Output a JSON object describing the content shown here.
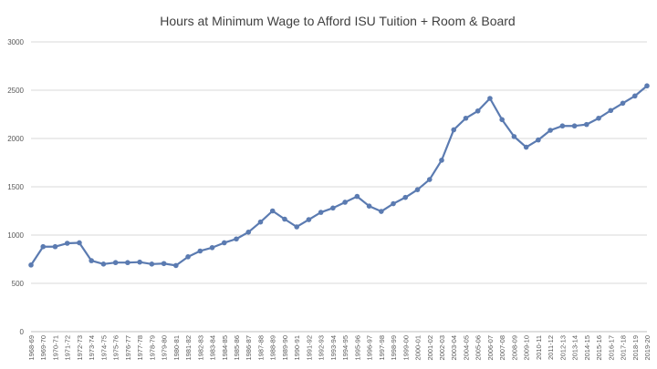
{
  "chart_data": {
    "type": "line",
    "title": "Hours at Minimum Wage to Afford ISU Tuition + Room & Board",
    "xlabel": "",
    "ylabel": "",
    "ylim": [
      0,
      3000
    ],
    "yticks": [
      0,
      500,
      1000,
      1500,
      2000,
      2500,
      3000
    ],
    "grid": true,
    "legend": "none",
    "line_color": "#5b7bb1",
    "categories": [
      "1968-69",
      "1969-70",
      "1970-71",
      "1971-72",
      "1972-73",
      "1973-74",
      "1974-75",
      "1975-76",
      "1976-77",
      "1977-78",
      "1978-79",
      "1979-80",
      "1980-81",
      "1981-82",
      "1982-83",
      "1983-84",
      "1984-85",
      "1985-86",
      "1986-87",
      "1987-88",
      "1988-89",
      "1989-90",
      "1990-91",
      "1991-92",
      "1992-93",
      "1993-94",
      "1994-95",
      "1995-96",
      "1996-97",
      "1997-98",
      "1998-99",
      "1999-00",
      "2000-01",
      "2001-02",
      "2002-03",
      "2003-04",
      "2004-05",
      "2005-06",
      "2006-07",
      "2007-08",
      "2008-09",
      "2009-10",
      "2010-11",
      "2011-12",
      "2012-13",
      "2013-14",
      "2014-15",
      "2015-16",
      "2016-17",
      "2017-18",
      "2018-19",
      "2019-20"
    ],
    "series": [
      {
        "values": [
          690,
          880,
          880,
          915,
          920,
          735,
          700,
          715,
          715,
          720,
          700,
          705,
          685,
          775,
          835,
          870,
          920,
          960,
          1030,
          1135,
          1250,
          1165,
          1085,
          1160,
          1235,
          1280,
          1340,
          1400,
          1300,
          1245,
          1325,
          1390,
          1470,
          1575,
          1775,
          2090,
          2210,
          2285,
          2415,
          2195,
          2020,
          1910,
          1985,
          2085,
          2130,
          2130,
          2145,
          2210,
          2290,
          2365,
          2440,
          2545
        ]
      }
    ]
  }
}
